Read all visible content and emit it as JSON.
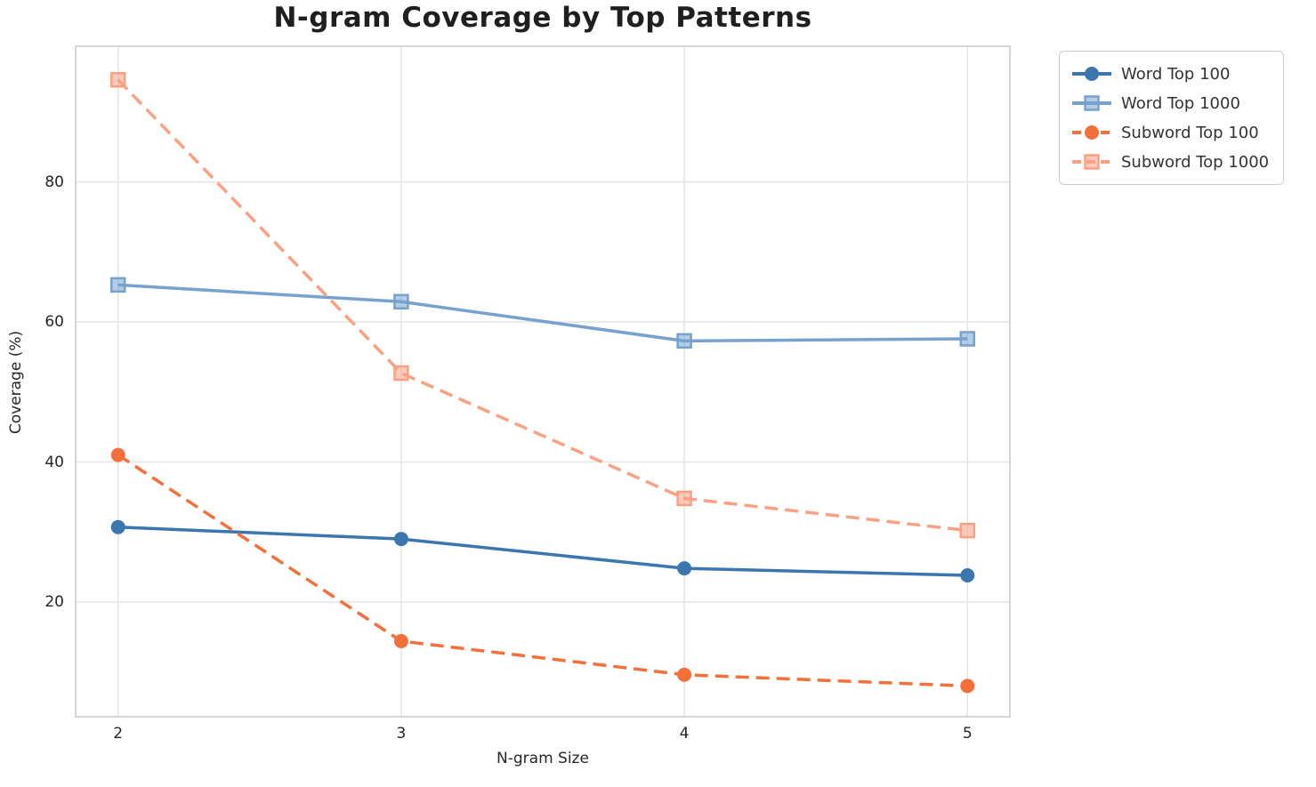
{
  "chart_data": {
    "type": "line",
    "title": "N-gram Coverage by Top Patterns",
    "xlabel": "N-gram Size",
    "ylabel": "Coverage (%)",
    "x": [
      2,
      3,
      4,
      5
    ],
    "xticks": [
      "2",
      "3",
      "4",
      "5"
    ],
    "yticks": [
      20,
      40,
      60,
      80
    ],
    "xlim": [
      1.85,
      5.15
    ],
    "ylim": [
      3.6,
      99.4
    ],
    "grid": true,
    "legend_position": "upper-right-outside",
    "series": [
      {
        "name": "Word Top 100",
        "color": "#3c76af",
        "style": "solid",
        "marker": "circle",
        "values": [
          30.7,
          29.0,
          24.8,
          23.8
        ]
      },
      {
        "name": "Word Top 1000",
        "color": "#77a2cd",
        "style": "solid",
        "marker": "square",
        "values": [
          65.3,
          62.9,
          57.3,
          57.6
        ]
      },
      {
        "name": "Subword Top 100",
        "color": "#f4703b",
        "style": "dashed",
        "marker": "circle",
        "values": [
          41.0,
          14.4,
          9.6,
          8.0
        ]
      },
      {
        "name": "Subword Top 1000",
        "color": "#fba183",
        "style": "dashed",
        "marker": "square",
        "values": [
          94.6,
          52.7,
          34.8,
          30.2
        ]
      }
    ],
    "colors": {
      "background": "#ffffff",
      "grid": "#e6e6e6",
      "spine": "#cccccc",
      "tick_text": "#262626",
      "title_text": "#1f1f1f",
      "legend_border": "#cccccc"
    }
  }
}
